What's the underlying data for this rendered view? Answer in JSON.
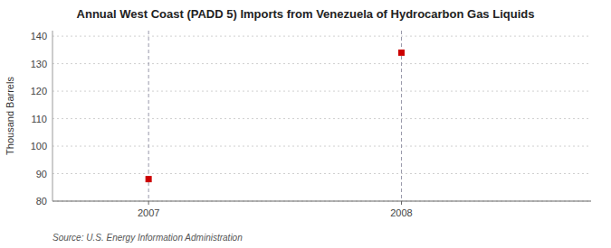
{
  "chart_data": {
    "type": "scatter",
    "title": "Annual West Coast (PADD 5) Imports from Venezuela of Hydrocarbon Gas Liquids",
    "ylabel": "Thousand Barrels",
    "source": "Source: U.S. Energy Information Administration",
    "x": [
      2007,
      2008
    ],
    "values": [
      88,
      134
    ],
    "xlim": [
      2006.62,
      2008.75
    ],
    "ylim": [
      80,
      142
    ],
    "xticks": [
      2007,
      2008
    ],
    "yticks": [
      80,
      90,
      100,
      110,
      120,
      130,
      140
    ],
    "color": "#cc0000",
    "marker": "square",
    "grid": true
  }
}
